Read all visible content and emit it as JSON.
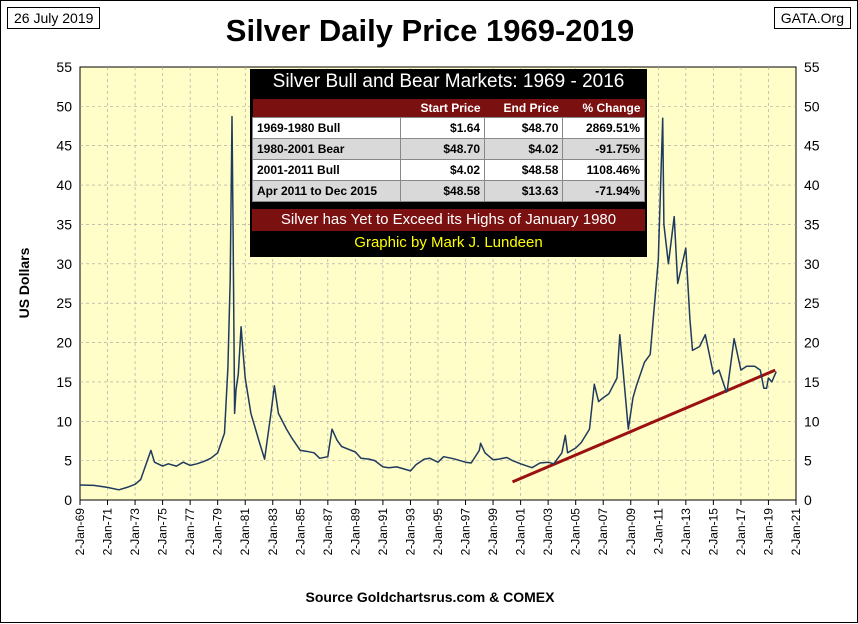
{
  "header": {
    "date": "26 July 2019",
    "source_tag": "GATA.Org",
    "title": "Silver Daily Price 1969-2019"
  },
  "footer": {
    "source": "Source Goldchartsrus.com & COMEX"
  },
  "colors": {
    "plot_background": "#fffdc8",
    "price_line": "#1f3a5f",
    "trend_line": "#9b1111",
    "table_header": "#7b1010",
    "credit_text": "#ffff00"
  },
  "table": {
    "title": "Silver Bull and Bear Markets: 1969 - 2016",
    "columns": [
      "",
      "Start Price",
      "End Price",
      "% Change"
    ],
    "rows": [
      [
        "1969-1980 Bull",
        "$1.64",
        "$48.70",
        "2869.51%"
      ],
      [
        "1980-2001 Bear",
        "$48.70",
        "$4.02",
        "-91.75%"
      ],
      [
        "2001-2011 Bull",
        "$4.02",
        "$48.58",
        "1108.46%"
      ],
      [
        "Apr 2011 to Dec 2015",
        "$48.58",
        "$13.63",
        "-71.94%"
      ]
    ],
    "banner": "Silver has Yet to Exceed its Highs of January 1980",
    "credit": "Graphic by Mark J. Lundeen"
  },
  "chart_data": {
    "type": "line",
    "ylabel": "US Dollars",
    "ylim": [
      0,
      55
    ],
    "y_ticks": [
      0,
      5,
      10,
      15,
      20,
      25,
      30,
      35,
      40,
      45,
      50,
      55
    ],
    "xlim": [
      "1969-01-02",
      "2021-01-02"
    ],
    "x_ticks": [
      "2-Jan-69",
      "2-Jan-71",
      "2-Jan-73",
      "2-Jan-75",
      "2-Jan-77",
      "2-Jan-79",
      "2-Jan-81",
      "2-Jan-83",
      "2-Jan-85",
      "2-Jan-87",
      "2-Jan-89",
      "2-Jan-91",
      "2-Jan-93",
      "2-Jan-95",
      "2-Jan-97",
      "2-Jan-99",
      "2-Jan-01",
      "2-Jan-03",
      "2-Jan-05",
      "2-Jan-07",
      "2-Jan-09",
      "2-Jan-11",
      "2-Jan-13",
      "2-Jan-15",
      "2-Jan-17",
      "2-Jan-19",
      "2-Jan-21"
    ],
    "grid": true,
    "series": [
      {
        "x": [
          "1969-01-02",
          "1970-01-02",
          "1971-01-02",
          "1971-11-01",
          "1972-06-01",
          "1973-01-02",
          "1973-06-01",
          "1974-02-26",
          "1974-06-01",
          "1975-01-02",
          "1975-06-01",
          "1976-01-02",
          "1976-07-01",
          "1977-01-02",
          "1977-07-01",
          "1978-01-02",
          "1978-07-01",
          "1979-01-02",
          "1979-07-01",
          "1979-10-01",
          "1979-12-01",
          "1980-01-18",
          "1980-02-15",
          "1980-03-27",
          "1980-05-01",
          "1980-07-01",
          "1980-09-15",
          "1980-11-01",
          "1981-01-02",
          "1981-06-01",
          "1982-01-02",
          "1982-06-01",
          "1982-11-01",
          "1983-02-15",
          "1983-06-01",
          "1984-01-02",
          "1984-06-01",
          "1985-01-02",
          "1985-06-01",
          "1986-01-02",
          "1986-06-01",
          "1987-01-02",
          "1987-04-24",
          "1987-09-01",
          "1988-01-02",
          "1988-06-01",
          "1989-01-02",
          "1989-06-01",
          "1990-01-02",
          "1990-06-01",
          "1991-01-02",
          "1991-06-01",
          "1992-01-02",
          "1992-06-01",
          "1993-01-02",
          "1993-06-01",
          "1994-01-02",
          "1994-06-01",
          "1995-01-02",
          "1995-06-01",
          "1996-01-02",
          "1996-06-01",
          "1997-01-02",
          "1997-06-01",
          "1998-01-02",
          "1998-02-05",
          "1998-06-01",
          "1999-01-02",
          "1999-06-01",
          "2000-01-02",
          "2000-06-01",
          "2001-01-02",
          "2001-11-01",
          "2002-06-01",
          "2003-01-02",
          "2003-06-01",
          "2004-01-02",
          "2004-04-01",
          "2004-06-01",
          "2005-01-02",
          "2005-06-01",
          "2006-01-02",
          "2006-05-11",
          "2006-09-01",
          "2007-01-02",
          "2007-06-01",
          "2008-01-02",
          "2008-03-17",
          "2008-06-01",
          "2008-10-28",
          "2009-03-01",
          "2009-06-01",
          "2010-01-02",
          "2010-06-01",
          "2011-01-02",
          "2011-04-28",
          "2011-06-01",
          "2011-09-26",
          "2012-02-28",
          "2012-06-01",
          "2013-01-02",
          "2013-04-20",
          "2013-06-28",
          "2014-01-02",
          "2014-06-01",
          "2015-01-02",
          "2015-06-01",
          "2015-12-15",
          "2016-01-02",
          "2016-07-05",
          "2017-01-02",
          "2017-06-01",
          "2018-01-02",
          "2018-06-01",
          "2018-09-01",
          "2018-11-15",
          "2019-01-02",
          "2019-04-01",
          "2019-07-26"
        ],
        "y": [
          1.9,
          1.85,
          1.6,
          1.3,
          1.6,
          2.0,
          2.6,
          6.3,
          4.8,
          4.3,
          4.6,
          4.3,
          4.8,
          4.4,
          4.6,
          4.9,
          5.3,
          6.0,
          8.5,
          16.8,
          28.0,
          48.7,
          34.0,
          11.0,
          14.0,
          16.0,
          22.0,
          19.0,
          15.5,
          11.0,
          7.5,
          5.2,
          10.5,
          14.5,
          11.0,
          9.0,
          7.8,
          6.3,
          6.2,
          6.0,
          5.3,
          5.5,
          9.0,
          7.6,
          6.8,
          6.5,
          6.1,
          5.3,
          5.2,
          5.0,
          4.2,
          4.1,
          4.2,
          4.0,
          3.7,
          4.5,
          5.2,
          5.3,
          4.8,
          5.5,
          5.3,
          5.1,
          4.8,
          4.7,
          6.3,
          7.2,
          6.0,
          5.1,
          5.2,
          5.4,
          5.0,
          4.6,
          4.1,
          4.7,
          4.8,
          4.6,
          6.0,
          8.2,
          6.0,
          6.6,
          7.3,
          9.0,
          14.7,
          12.5,
          13.0,
          13.5,
          15.5,
          21.0,
          17.0,
          9.0,
          13.0,
          14.5,
          17.5,
          18.5,
          30.5,
          48.5,
          35.0,
          30.0,
          36.0,
          27.5,
          32.0,
          23.0,
          19.0,
          19.5,
          21.0,
          16.0,
          16.5,
          13.7,
          13.8,
          20.5,
          16.5,
          17.0,
          17.0,
          16.5,
          14.2,
          14.2,
          15.5,
          15.0,
          16.3
        ]
      }
    ],
    "trend_line": {
      "x": [
        "2000-06-01",
        "2019-07-01"
      ],
      "y": [
        2.3,
        16.5
      ]
    }
  }
}
